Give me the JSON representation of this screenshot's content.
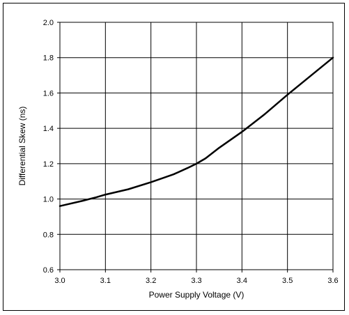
{
  "chart_data": {
    "type": "line",
    "title": "",
    "xlabel": "Power Supply Voltage (V)",
    "ylabel": "Differential Skew (ns)",
    "xlim": [
      3.0,
      3.6
    ],
    "ylim": [
      0.6,
      2.0
    ],
    "xticks": [
      "3.0",
      "3.1",
      "3.2",
      "3.3",
      "3.4",
      "3.5",
      "3.6"
    ],
    "yticks": [
      "0.6",
      "0.8",
      "1.0",
      "1.2",
      "1.4",
      "1.6",
      "1.8",
      "2.0"
    ],
    "grid": true,
    "series": [
      {
        "color": "#000000",
        "x": [
          3.0,
          3.05,
          3.08,
          3.1,
          3.15,
          3.2,
          3.25,
          3.28,
          3.3,
          3.32,
          3.35,
          3.4,
          3.45,
          3.5,
          3.55,
          3.6
        ],
        "y": [
          0.96,
          0.99,
          1.01,
          1.025,
          1.055,
          1.095,
          1.14,
          1.175,
          1.2,
          1.23,
          1.29,
          1.38,
          1.48,
          1.59,
          1.695,
          1.8
        ]
      }
    ]
  }
}
